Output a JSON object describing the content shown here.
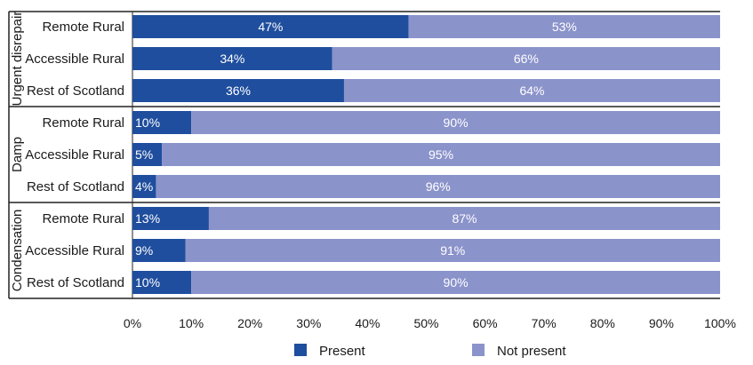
{
  "chart_data": {
    "type": "bar",
    "orientation": "horizontal",
    "stacked": true,
    "groups": [
      {
        "name": "Urgent disrepair",
        "categories": [
          "Remote Rural",
          "Accessible Rural",
          "Rest of Scotland"
        ]
      },
      {
        "name": "Damp",
        "categories": [
          "Remote Rural",
          "Accessible Rural",
          "Rest of Scotland"
        ]
      },
      {
        "name": "Condensation",
        "categories": [
          "Remote Rural",
          "Accessible Rural",
          "Rest of Scotland"
        ]
      }
    ],
    "series": [
      {
        "name": "Present",
        "color": "#1f4e9e",
        "values": [
          [
            47,
            34,
            36
          ],
          [
            10,
            5,
            4
          ],
          [
            13,
            9,
            10
          ]
        ]
      },
      {
        "name": "Not present",
        "color": "#8b93cb",
        "values": [
          [
            53,
            66,
            64
          ],
          [
            90,
            95,
            96
          ],
          [
            87,
            91,
            90
          ]
        ]
      }
    ],
    "xlim": [
      0,
      100
    ],
    "xticks": [
      0,
      10,
      20,
      30,
      40,
      50,
      60,
      70,
      80,
      90,
      100
    ],
    "tick_suffix": "%",
    "value_suffix": "%",
    "legend_position": "bottom",
    "grid": false
  }
}
